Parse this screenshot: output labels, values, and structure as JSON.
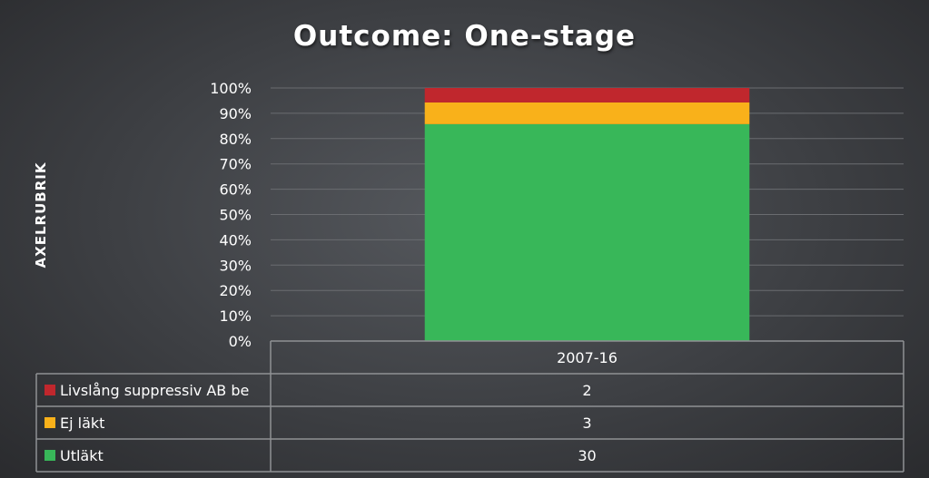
{
  "chart_data": {
    "type": "bar",
    "stacked": true,
    "normalized": true,
    "title": "Outcome: One-stage",
    "xlabel": "",
    "ylabel": "AXELRUBRIK",
    "categories": [
      "2007-16"
    ],
    "ylim": [
      0,
      100
    ],
    "yticks": [
      "0%",
      "10%",
      "20%",
      "30%",
      "40%",
      "50%",
      "60%",
      "70%",
      "80%",
      "90%",
      "100%"
    ],
    "series": [
      {
        "name": "Livslång suppressiv AB be",
        "values": [
          2
        ],
        "color": "#c0272d"
      },
      {
        "name": "Ej läkt",
        "values": [
          3
        ],
        "color": "#f9b11a"
      },
      {
        "name": "Utläkt",
        "values": [
          30
        ],
        "color": "#38b759"
      }
    ],
    "data_table": true,
    "grid": true
  }
}
